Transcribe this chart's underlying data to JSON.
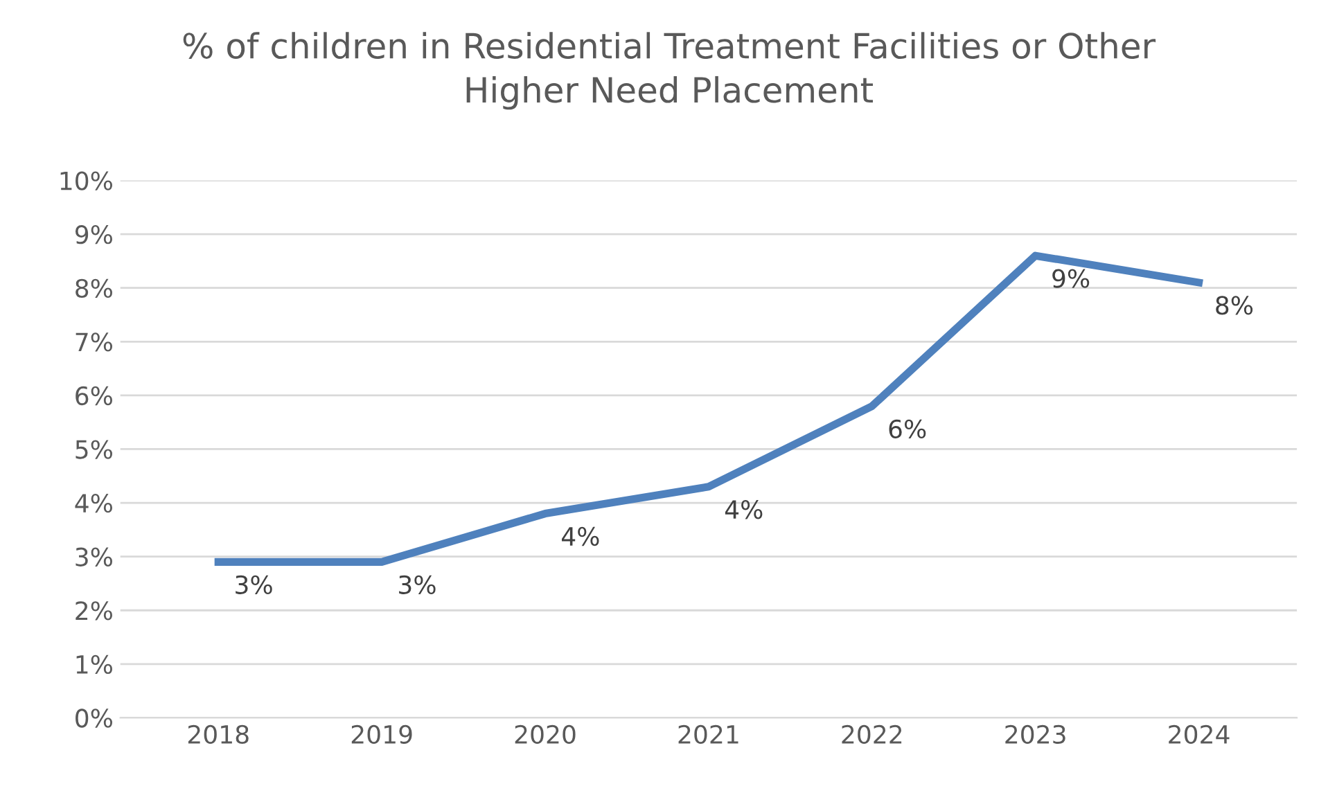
{
  "chart_data": {
    "type": "line",
    "title": "% of children in Residential Treatment Facilities or Other\nHigher Need Placement",
    "categories": [
      "2018",
      "2019",
      "2020",
      "2021",
      "2022",
      "2023",
      "2024"
    ],
    "series": [
      {
        "color": "#4f81bd",
        "values": [
          2.9,
          2.9,
          3.8,
          4.3,
          5.8,
          8.6,
          8.1
        ],
        "value_labels": [
          "3%",
          "3%",
          "4%",
          "4%",
          "6%",
          "9%",
          "8%"
        ]
      }
    ],
    "ylim": [
      0,
      10
    ],
    "yticks": [
      {
        "value": 0,
        "label": "0%"
      },
      {
        "value": 1,
        "label": "1%"
      },
      {
        "value": 2,
        "label": "2%"
      },
      {
        "value": 3,
        "label": "3%"
      },
      {
        "value": 4,
        "label": "4%"
      },
      {
        "value": 5,
        "label": "5%"
      },
      {
        "value": 6,
        "label": "6%"
      },
      {
        "value": 7,
        "label": "7%"
      },
      {
        "value": 8,
        "label": "8%"
      },
      {
        "value": 9,
        "label": "9%"
      },
      {
        "value": 10,
        "label": "10%"
      }
    ],
    "grid": "y",
    "legend": false,
    "marker": "none",
    "line_style": "solid"
  }
}
